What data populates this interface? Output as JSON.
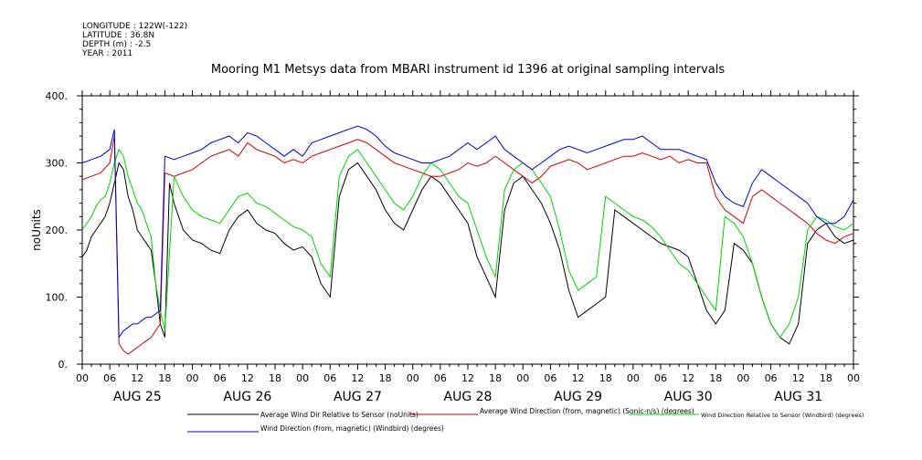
{
  "header": {
    "lines": [
      "LONGITUDE : 122W(-122)",
      "LATITUDE : 36.8N",
      "DEPTH (m) : -2.5",
      "YEAR : 2011"
    ]
  },
  "chart_data": {
    "type": "line",
    "title": "Mooring M1 Metsys data from MBARI instrument id 1396 at original sampling intervals",
    "ylabel": "noUnits",
    "ylim": [
      0,
      400
    ],
    "yticks": [
      "0.",
      "100.",
      "200.",
      "300.",
      "400."
    ],
    "xlim": [
      0,
      168
    ],
    "xlim_units": "hours from Aug 25 00:00, 2011",
    "hour_ticks": [
      "00",
      "06",
      "12",
      "18",
      "00",
      "06",
      "12",
      "18",
      "00",
      "06",
      "12",
      "18",
      "00",
      "06",
      "12",
      "18",
      "00",
      "06",
      "12",
      "18",
      "00",
      "06",
      "12",
      "18",
      "00",
      "06",
      "12",
      "18",
      "00"
    ],
    "day_labels": [
      {
        "label": "AUG 25",
        "x": 12
      },
      {
        "label": "AUG 26",
        "x": 36
      },
      {
        "label": "AUG 27",
        "x": 60
      },
      {
        "label": "AUG 28",
        "x": 84
      },
      {
        "label": "AUG 29",
        "x": 108
      },
      {
        "label": "AUG 30",
        "x": 132
      },
      {
        "label": "AUG 31",
        "x": 156
      }
    ],
    "series": [
      {
        "name": "Average Wind Dir Relative to Sensor (noUnits)",
        "color": "#000000",
        "x": [
          0,
          1,
          2,
          3,
          4,
          5,
          6,
          7,
          8,
          9,
          10,
          11,
          12,
          13,
          14,
          15,
          16,
          17,
          18,
          19,
          20,
          21,
          22,
          24,
          26,
          28,
          30,
          32,
          34,
          36,
          38,
          40,
          42,
          44,
          46,
          48,
          50,
          52,
          54,
          56,
          58,
          60,
          62,
          64,
          66,
          68,
          70,
          72,
          74,
          76,
          78,
          80,
          82,
          84,
          86,
          88,
          90,
          92,
          94,
          96,
          98,
          100,
          102,
          104,
          106,
          108,
          110,
          112,
          114,
          116,
          118,
          120,
          122,
          124,
          126,
          128,
          130,
          132,
          134,
          136,
          138,
          140,
          142,
          144,
          146,
          148,
          150,
          152,
          154,
          156,
          158,
          160,
          162,
          164,
          166,
          168
        ],
        "y": [
          160,
          170,
          190,
          200,
          210,
          220,
          240,
          270,
          300,
          290,
          250,
          230,
          200,
          190,
          180,
          170,
          120,
          60,
          40,
          270,
          240,
          220,
          200,
          185,
          180,
          170,
          165,
          200,
          220,
          230,
          210,
          200,
          195,
          180,
          170,
          175,
          160,
          120,
          100,
          250,
          290,
          300,
          280,
          260,
          230,
          210,
          200,
          230,
          260,
          280,
          270,
          250,
          230,
          210,
          160,
          130,
          100,
          230,
          270,
          280,
          260,
          240,
          210,
          170,
          110,
          70,
          80,
          90,
          100,
          230,
          220,
          210,
          200,
          190,
          180,
          175,
          170,
          160,
          120,
          80,
          60,
          80,
          180,
          170,
          150,
          100,
          60,
          40,
          30,
          60,
          180,
          200,
          210,
          190,
          180,
          185
        ],
        "line_style": "solid"
      },
      {
        "name": "Average Wind Direction (from, magnetic) (Sonic-n/s) (degrees)",
        "color": "#d40000",
        "x": [
          0,
          2,
          4,
          6,
          7,
          8,
          9,
          10,
          11,
          12,
          13,
          14,
          15,
          16,
          17,
          18,
          20,
          22,
          24,
          26,
          28,
          30,
          32,
          34,
          36,
          38,
          40,
          42,
          44,
          46,
          48,
          50,
          52,
          54,
          56,
          58,
          60,
          62,
          64,
          66,
          68,
          70,
          72,
          74,
          76,
          78,
          80,
          82,
          84,
          86,
          88,
          90,
          92,
          94,
          96,
          98,
          100,
          102,
          104,
          106,
          108,
          110,
          112,
          114,
          116,
          118,
          120,
          122,
          124,
          126,
          128,
          130,
          132,
          134,
          136,
          138,
          140,
          142,
          144,
          146,
          148,
          150,
          152,
          154,
          156,
          158,
          160,
          162,
          164,
          166,
          168
        ],
        "y": [
          275,
          280,
          285,
          300,
          340,
          30,
          20,
          15,
          20,
          25,
          30,
          35,
          40,
          50,
          60,
          285,
          280,
          285,
          290,
          300,
          310,
          315,
          320,
          310,
          330,
          320,
          315,
          310,
          300,
          305,
          300,
          310,
          315,
          320,
          325,
          330,
          335,
          330,
          320,
          310,
          300,
          295,
          290,
          285,
          280,
          280,
          285,
          290,
          300,
          295,
          300,
          310,
          300,
          290,
          280,
          270,
          280,
          295,
          300,
          305,
          300,
          290,
          295,
          300,
          305,
          310,
          310,
          315,
          310,
          305,
          310,
          300,
          305,
          300,
          300,
          250,
          230,
          220,
          210,
          250,
          260,
          250,
          240,
          230,
          220,
          210,
          195,
          185,
          180,
          190,
          195
        ],
        "line_style": "solid"
      },
      {
        "name": "Wind Direction Relative to Sensor (Windbird) (degrees)",
        "color": "#00d400",
        "x": [
          0,
          1,
          2,
          3,
          4,
          5,
          6,
          7,
          8,
          9,
          10,
          11,
          12,
          13,
          14,
          15,
          16,
          17,
          18,
          20,
          22,
          24,
          26,
          28,
          30,
          32,
          34,
          36,
          38,
          40,
          42,
          44,
          46,
          48,
          50,
          52,
          54,
          56,
          58,
          60,
          62,
          64,
          66,
          68,
          70,
          72,
          74,
          76,
          78,
          80,
          82,
          84,
          86,
          88,
          90,
          92,
          94,
          96,
          98,
          100,
          102,
          104,
          106,
          108,
          110,
          112,
          114,
          116,
          118,
          120,
          122,
          124,
          126,
          128,
          130,
          132,
          134,
          136,
          138,
          140,
          142,
          144,
          146,
          148,
          150,
          152,
          154,
          156,
          158,
          160,
          162,
          164,
          166,
          168
        ],
        "y": [
          200,
          210,
          220,
          235,
          245,
          250,
          270,
          300,
          320,
          310,
          280,
          260,
          240,
          230,
          210,
          190,
          120,
          80,
          50,
          280,
          250,
          230,
          220,
          215,
          210,
          230,
          250,
          255,
          240,
          235,
          225,
          215,
          205,
          200,
          190,
          150,
          130,
          280,
          310,
          320,
          300,
          280,
          260,
          240,
          230,
          250,
          280,
          300,
          290,
          270,
          250,
          240,
          200,
          160,
          130,
          260,
          290,
          300,
          290,
          270,
          250,
          200,
          140,
          110,
          120,
          130,
          250,
          240,
          230,
          220,
          215,
          205,
          190,
          170,
          150,
          140,
          120,
          100,
          80,
          220,
          210,
          190,
          150,
          100,
          60,
          40,
          60,
          100,
          200,
          220,
          215,
          205,
          200,
          210
        ],
        "line_style": "solid"
      },
      {
        "name": "Wind Direction (from, magnetic) (Windbird) (degrees)",
        "color": "#0000d4",
        "x": [
          0,
          2,
          4,
          6,
          7,
          8,
          9,
          10,
          11,
          12,
          13,
          14,
          15,
          16,
          17,
          18,
          20,
          22,
          24,
          26,
          28,
          30,
          32,
          34,
          36,
          38,
          40,
          42,
          44,
          46,
          48,
          50,
          52,
          54,
          56,
          58,
          60,
          62,
          64,
          66,
          68,
          70,
          72,
          74,
          76,
          78,
          80,
          82,
          84,
          86,
          88,
          90,
          92,
          94,
          96,
          98,
          100,
          102,
          104,
          106,
          108,
          110,
          112,
          114,
          116,
          118,
          120,
          122,
          124,
          126,
          128,
          130,
          132,
          134,
          136,
          138,
          140,
          142,
          144,
          146,
          148,
          150,
          152,
          154,
          156,
          158,
          160,
          162,
          164,
          166,
          168
        ],
        "y": [
          300,
          305,
          310,
          320,
          350,
          40,
          50,
          55,
          60,
          60,
          65,
          70,
          70,
          75,
          80,
          310,
          305,
          310,
          315,
          320,
          330,
          335,
          340,
          330,
          345,
          340,
          330,
          320,
          310,
          320,
          310,
          330,
          335,
          340,
          345,
          350,
          355,
          350,
          340,
          325,
          315,
          310,
          305,
          300,
          300,
          305,
          310,
          320,
          330,
          320,
          330,
          340,
          320,
          310,
          300,
          290,
          300,
          310,
          320,
          325,
          320,
          315,
          320,
          325,
          330,
          335,
          335,
          340,
          330,
          320,
          320,
          320,
          315,
          310,
          305,
          270,
          250,
          240,
          235,
          270,
          290,
          280,
          270,
          260,
          250,
          240,
          220,
          210,
          210,
          220,
          245
        ],
        "line_style": "solid"
      }
    ],
    "grid": false,
    "legend_position": "bottom"
  }
}
